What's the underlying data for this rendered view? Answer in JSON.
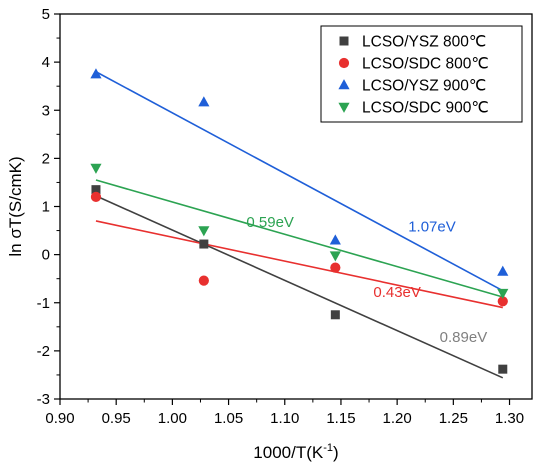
{
  "chart_data": {
    "type": "scatter",
    "xlabel": "1000/T(K",
    "xlabel_sup": "-1",
    "xlabel_end": ")",
    "ylabel": "ln σT(S/cmK)",
    "xlim": [
      0.9,
      1.32
    ],
    "ylim": [
      -3,
      5
    ],
    "x_ticks": [
      0.9,
      0.95,
      1.0,
      1.05,
      1.1,
      1.15,
      1.2,
      1.25,
      1.3
    ],
    "x_tick_labels": [
      "0.90",
      "0.95",
      "1.00",
      "1.05",
      "1.10",
      "1.15",
      "1.20",
      "1.25",
      "1.30"
    ],
    "y_ticks": [
      -3,
      -2,
      -1,
      0,
      1,
      2,
      3,
      4,
      5
    ],
    "y_tick_labels": [
      "-3",
      "-2",
      "-1",
      "0",
      "1",
      "2",
      "3",
      "4",
      "5"
    ],
    "legend_position": "top-right",
    "series": [
      {
        "name": "LCSO/YSZ 800℃",
        "marker": "square",
        "color": "#404040",
        "x": [
          0.932,
          1.028,
          1.145,
          1.294
        ],
        "y": [
          1.35,
          0.22,
          -1.25,
          -2.38
        ],
        "fit": {
          "x": [
            0.932,
            1.294
          ],
          "y": [
            1.22,
            -2.56
          ]
        },
        "fit_label": "0.89eV",
        "fit_label_color": "#808080",
        "fit_label_at": [
          1.259,
          -1.82
        ]
      },
      {
        "name": "LCSO/SDC 800℃",
        "marker": "circle",
        "color": "#e8302f",
        "x": [
          0.932,
          1.028,
          1.145,
          1.294
        ],
        "y": [
          1.2,
          -0.54,
          -0.27,
          -0.97
        ],
        "fit": {
          "x": [
            0.932,
            1.294
          ],
          "y": [
            0.7,
            -1.1
          ]
        },
        "fit_label": "0.43eV",
        "fit_label_color": "#e8302f",
        "fit_label_at": [
          1.2,
          -0.88
        ]
      },
      {
        "name": "LCSO/YSZ 900℃",
        "marker": "triangle-up",
        "color": "#1f5fd8",
        "x": [
          0.932,
          1.028,
          1.145,
          1.294
        ],
        "y": [
          3.75,
          3.17,
          0.3,
          -0.35
        ],
        "fit": {
          "x": [
            0.932,
            1.294
          ],
          "y": [
            3.8,
            -0.75
          ]
        },
        "fit_label": "1.07eV",
        "fit_label_color": "#1f5fd8",
        "fit_label_at": [
          1.231,
          0.48
        ]
      },
      {
        "name": "LCSO/SDC 900℃",
        "marker": "triangle-down",
        "color": "#2ca352",
        "x": [
          0.932,
          1.028,
          1.145,
          1.294
        ],
        "y": [
          1.8,
          0.5,
          -0.02,
          -0.8
        ],
        "fit": {
          "x": [
            0.932,
            1.294
          ],
          "y": [
            1.55,
            -0.88
          ]
        },
        "fit_label": "0.59eV",
        "fit_label_color": "#2ca352",
        "fit_label_at": [
          1.087,
          0.57
        ]
      }
    ]
  }
}
